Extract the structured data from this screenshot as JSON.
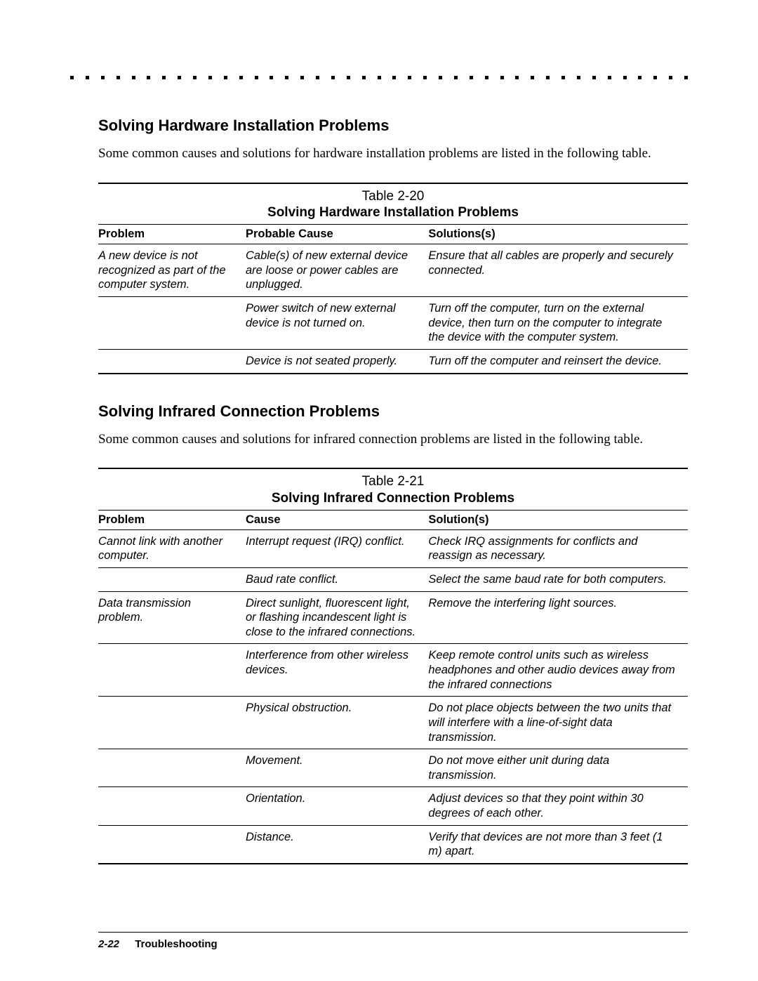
{
  "dotCount": 41,
  "section1": {
    "heading": "Solving Hardware Installation Problems",
    "intro": "Some common causes and solutions for hardware installation problems are listed in the following table.",
    "tableNumber": "Table 2-20",
    "tableTitle": "Solving Hardware Installation Problems",
    "headers": {
      "problem": "Problem",
      "cause": "Probable Cause",
      "solution": "Solutions(s)"
    },
    "rows": [
      {
        "problem": "A new device is not recognized as part of the computer system.",
        "cause": "Cable(s) of new external device are loose or power cables are unplugged.",
        "solution": "Ensure that all cables are properly and securely connected.",
        "sep": false
      },
      {
        "problem": "",
        "cause": "Power switch of new external device is not turned on.",
        "solution": "Turn off the computer, turn on the external device, then turn on the computer to integrate the device with the computer system.",
        "sep": true
      },
      {
        "problem": "",
        "cause": "Device is not seated properly.",
        "solution": "Turn off the computer and reinsert the device.",
        "sep": true
      }
    ]
  },
  "section2": {
    "heading": "Solving Infrared Connection Problems",
    "intro": "Some common causes and solutions for infrared connection problems are listed in the following table.",
    "tableNumber": "Table 2-21",
    "tableTitle": "Solving Infrared Connection Problems",
    "headers": {
      "problem": "Problem",
      "cause": "Cause",
      "solution": "Solution(s)"
    },
    "rows": [
      {
        "problem": "Cannot link with another computer.",
        "cause": "Interrupt request (IRQ) conflict.",
        "solution": "Check IRQ assignments for conflicts and reassign as necessary.",
        "sep": false
      },
      {
        "problem": "",
        "cause": "Baud rate conflict.",
        "solution": "Select the same baud rate for both computers.",
        "sep": true
      },
      {
        "problem": "Data transmission problem.",
        "cause": "Direct sunlight, fluorescent light, or flashing incandescent light is close to the infrared connections.",
        "solution": "Remove the interfering light sources.",
        "sep": true
      },
      {
        "problem": "",
        "cause": "Interference from other wireless devices.",
        "solution": "Keep remote control units such as wireless headphones and other audio devices away from the infrared connections",
        "sep": true
      },
      {
        "problem": "",
        "cause": "Physical obstruction.",
        "solution": "Do not place objects between the two units that will interfere with a line-of-sight data transmission.",
        "sep": true
      },
      {
        "problem": "",
        "cause": "Movement.",
        "solution": "Do not move either unit during data transmission.",
        "sep": true
      },
      {
        "problem": "",
        "cause": "Orientation.",
        "solution": "Adjust devices so that they point within 30 degrees of each other.",
        "sep": true
      },
      {
        "problem": "",
        "cause": "Distance.",
        "solution": "Verify that devices are not more than 3 feet (1 m) apart.",
        "sep": true
      }
    ]
  },
  "footer": {
    "pageNumber": "2-22",
    "pageTitle": "Troubleshooting"
  }
}
